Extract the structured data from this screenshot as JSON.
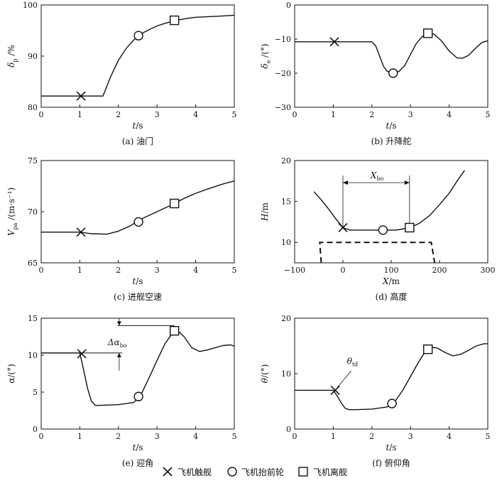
{
  "chart_data": [
    {
      "type": "line",
      "id": "a",
      "caption": "(a) 油门",
      "ylabel_sym": "δ",
      "ylabel_sub": "p",
      "ylabel_unit": "/%",
      "xlabel_sym": "t",
      "xlabel_unit": "/s",
      "xlim": [
        0,
        5
      ],
      "ylim": [
        80,
        100
      ],
      "xticks": [
        0,
        1,
        2,
        3,
        4,
        5
      ],
      "yticks": [
        80,
        90,
        100
      ],
      "series": [
        {
          "name": "δp",
          "x": [
            0,
            1.0,
            1.6,
            1.8,
            2.0,
            2.2,
            2.4,
            2.6,
            2.8,
            3.0,
            3.2,
            3.5,
            3.8,
            4.0,
            4.3,
            4.6,
            5.0
          ],
          "y": [
            82.2,
            82.2,
            82.2,
            86.0,
            89.2,
            91.5,
            93.2,
            94.4,
            95.2,
            95.9,
            96.4,
            97.0,
            97.4,
            97.6,
            97.7,
            97.8,
            98.0
          ]
        }
      ],
      "markers": [
        {
          "type": "touchdown",
          "x": 1.03,
          "y": 82.2
        },
        {
          "type": "rotation",
          "x": 2.52,
          "y": 94.0
        },
        {
          "type": "liftoff",
          "x": 3.45,
          "y": 97.0
        }
      ]
    },
    {
      "type": "line",
      "id": "b",
      "caption": "(b) 升降舵",
      "ylabel_sym": "δ",
      "ylabel_sub": "e",
      "ylabel_unit": "/(°)",
      "xlabel_sym": "t",
      "xlabel_unit": "/s",
      "xlim": [
        0,
        5
      ],
      "ylim": [
        -30,
        0
      ],
      "xticks": [
        0,
        1,
        2,
        3,
        4,
        5
      ],
      "yticks": [
        -30,
        -20,
        -10,
        0
      ],
      "series": [
        {
          "name": "δe",
          "x": [
            0,
            1.0,
            2.0,
            2.1,
            2.2,
            2.3,
            2.4,
            2.55,
            2.7,
            2.85,
            3.0,
            3.15,
            3.3,
            3.45,
            3.6,
            3.8,
            4.0,
            4.2,
            4.35,
            4.5,
            4.7,
            4.85,
            5.0
          ],
          "y": [
            -10.8,
            -10.8,
            -10.8,
            -12.0,
            -15.0,
            -18.0,
            -19.5,
            -20.0,
            -19.5,
            -17.8,
            -14.5,
            -11.3,
            -9.3,
            -8.3,
            -8.5,
            -10.5,
            -13.5,
            -15.5,
            -15.6,
            -14.8,
            -12.5,
            -11.0,
            -10.5
          ]
        }
      ],
      "markers": [
        {
          "type": "touchdown",
          "x": 1.03,
          "y": -10.8
        },
        {
          "type": "rotation",
          "x": 2.55,
          "y": -20.0
        },
        {
          "type": "liftoff",
          "x": 3.45,
          "y": -8.3
        }
      ]
    },
    {
      "type": "line",
      "id": "c",
      "caption": "(c) 进舰空速",
      "ylabel_sym": "V",
      "ylabel_sub": "pa",
      "ylabel_unit": "/(m·s⁻¹)",
      "xlabel_sym": "t",
      "xlabel_unit": "/s",
      "xlim": [
        0,
        5
      ],
      "ylim": [
        65,
        75
      ],
      "xticks": [
        0,
        1,
        2,
        3,
        4,
        5
      ],
      "yticks": [
        65,
        70,
        75
      ],
      "series": [
        {
          "name": "Vpa",
          "x": [
            0,
            1.0,
            1.3,
            1.7,
            2.0,
            2.3,
            2.6,
            3.0,
            3.4,
            3.7,
            4.0,
            4.3,
            4.7,
            5.0
          ],
          "y": [
            68.0,
            68.0,
            67.85,
            67.8,
            68.1,
            68.6,
            69.3,
            70.0,
            70.7,
            71.3,
            71.8,
            72.2,
            72.7,
            73.0
          ]
        }
      ],
      "markers": [
        {
          "type": "touchdown",
          "x": 1.03,
          "y": 68.0
        },
        {
          "type": "rotation",
          "x": 2.52,
          "y": 69.0
        },
        {
          "type": "liftoff",
          "x": 3.45,
          "y": 70.8
        }
      ]
    },
    {
      "type": "line",
      "id": "d",
      "caption": "(d) 高度",
      "ylabel_sym": "H",
      "ylabel_sub": "",
      "ylabel_unit": "/m",
      "xlabel_sym": "X",
      "xlabel_unit": "/m",
      "xlim": [
        -100,
        300
      ],
      "ylim": [
        7.5,
        20
      ],
      "xticks": [
        -100,
        0,
        100,
        200,
        300
      ],
      "yticks": [
        10,
        15,
        20
      ],
      "series": [
        {
          "name": "H",
          "x": [
            -60,
            -45,
            -30,
            -15,
            0,
            15,
            30,
            50,
            80,
            110,
            140,
            160,
            180,
            200,
            220,
            240,
            252
          ],
          "y": [
            16.2,
            15.2,
            14.1,
            12.9,
            11.8,
            11.5,
            11.5,
            11.5,
            11.5,
            11.5,
            11.8,
            12.4,
            13.3,
            14.6,
            16.0,
            17.8,
            18.8
          ]
        }
      ],
      "markers": [
        {
          "type": "touchdown",
          "x": 0,
          "y": 11.8
        },
        {
          "type": "rotation",
          "x": 83,
          "y": 11.5
        },
        {
          "type": "liftoff",
          "x": 138,
          "y": 11.8
        }
      ],
      "annotation": {
        "label": "X",
        "label_sub": "bo",
        "from_x": 0,
        "to_x": 138,
        "y": 17.3
      },
      "deck_outline": {
        "x": [
          -45,
          -48,
          183,
          190
        ],
        "y": [
          7.4,
          10.0,
          10.0,
          7.4
        ]
      }
    },
    {
      "type": "line",
      "id": "e",
      "caption": "(e) 迎角",
      "ylabel_sym": "α",
      "ylabel_sub": "",
      "ylabel_unit": "/(°)",
      "xlabel_sym": "t",
      "xlabel_unit": "/s",
      "xlim": [
        0,
        5
      ],
      "ylim": [
        0,
        15
      ],
      "xticks": [
        0,
        1,
        2,
        3,
        4,
        5
      ],
      "yticks": [
        0,
        5,
        10,
        15
      ],
      "series": [
        {
          "name": "α",
          "x": [
            0,
            1.0,
            1.1,
            1.2,
            1.3,
            1.4,
            1.5,
            2.0,
            2.4,
            2.6,
            2.8,
            3.0,
            3.2,
            3.4,
            3.5,
            3.7,
            3.9,
            4.1,
            4.3,
            4.5,
            4.7,
            4.9,
            5.0
          ],
          "y": [
            10.3,
            10.3,
            8.0,
            5.5,
            3.8,
            3.2,
            3.2,
            3.3,
            3.6,
            4.8,
            7.0,
            9.3,
            11.5,
            13.0,
            13.5,
            12.5,
            11.0,
            10.5,
            10.7,
            11.0,
            11.3,
            11.4,
            11.2
          ]
        }
      ],
      "markers": [
        {
          "type": "touchdown",
          "x": 1.05,
          "y": 10.2
        },
        {
          "type": "rotation",
          "x": 2.52,
          "y": 4.4
        },
        {
          "type": "liftoff",
          "x": 3.45,
          "y": 13.3
        }
      ],
      "annotation": {
        "label": "Δα",
        "label_sub": "bo",
        "low_y": 10.3,
        "high_y": 14.0
      }
    },
    {
      "type": "line",
      "id": "f",
      "caption": "(f) 俯仰角",
      "ylabel_sym": "θ",
      "ylabel_sub": "",
      "ylabel_unit": "/(°)",
      "xlabel_sym": "t",
      "xlabel_unit": "/s",
      "xlim": [
        0,
        5
      ],
      "ylim": [
        0,
        20
      ],
      "xticks": [
        0,
        1,
        2,
        3,
        4,
        5
      ],
      "yticks": [
        0,
        10,
        20
      ],
      "series": [
        {
          "name": "θ",
          "x": [
            0,
            1.0,
            1.1,
            1.2,
            1.3,
            1.4,
            1.6,
            2.0,
            2.4,
            2.6,
            2.8,
            3.0,
            3.2,
            3.4,
            3.5,
            3.7,
            3.9,
            4.1,
            4.3,
            4.5,
            4.7,
            4.9,
            5.0
          ],
          "y": [
            7.0,
            7.0,
            6.0,
            4.8,
            3.8,
            3.5,
            3.5,
            3.6,
            4.0,
            5.0,
            7.0,
            9.5,
            12.0,
            14.2,
            14.8,
            14.6,
            13.8,
            13.2,
            13.5,
            14.2,
            15.0,
            15.4,
            15.4
          ]
        }
      ],
      "markers": [
        {
          "type": "touchdown",
          "x": 1.05,
          "y": 7.0
        },
        {
          "type": "rotation",
          "x": 2.52,
          "y": 4.6
        },
        {
          "type": "liftoff",
          "x": 3.45,
          "y": 14.4
        }
      ],
      "annotation": {
        "label": "θ",
        "label_sub": "td",
        "point_x": 1.05,
        "point_y": 7.0,
        "text_x": 1.5,
        "text_y": 11.5
      }
    }
  ],
  "legend": [
    {
      "type": "touchdown",
      "label": "飞机触舰"
    },
    {
      "type": "rotation",
      "label": "飞机抬前轮"
    },
    {
      "type": "liftoff",
      "label": "飞机离舰"
    }
  ]
}
